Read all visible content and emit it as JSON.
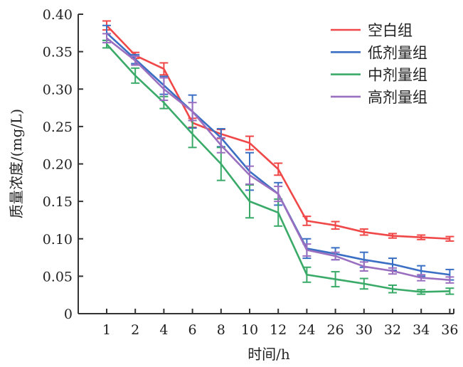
{
  "chart_data": {
    "type": "line",
    "title": "",
    "xlabel": "时间/h",
    "ylabel": "质量浓度/(mg/L)",
    "ylim": [
      0,
      0.4
    ],
    "yticks": [
      "0",
      "0.05",
      "0.10",
      "0.15",
      "0.20",
      "0.25",
      "0.30",
      "0.35",
      "0.40"
    ],
    "categories": [
      "1",
      "2",
      "4",
      "6",
      "8",
      "10",
      "12",
      "24",
      "26",
      "30",
      "32",
      "34",
      "36"
    ],
    "legend_position": "top-right",
    "grid": false,
    "series": [
      {
        "name": "空白组",
        "color": "#f04848",
        "values": [
          0.385,
          0.345,
          0.327,
          0.255,
          0.24,
          0.228,
          0.193,
          0.124,
          0.118,
          0.109,
          0.104,
          0.102,
          0.1
        ],
        "errors": [
          0.006,
          0.004,
          0.008,
          0.006,
          0.006,
          0.009,
          0.008,
          0.006,
          0.005,
          0.004,
          0.003,
          0.003,
          0.003
        ]
      },
      {
        "name": "低剂量组",
        "color": "#3a6fc4",
        "values": [
          0.375,
          0.34,
          0.305,
          0.27,
          0.235,
          0.19,
          0.16,
          0.087,
          0.08,
          0.072,
          0.066,
          0.057,
          0.052
        ],
        "errors": [
          0.01,
          0.006,
          0.012,
          0.022,
          0.012,
          0.025,
          0.015,
          0.013,
          0.008,
          0.01,
          0.008,
          0.007,
          0.007
        ]
      },
      {
        "name": "中剂量组",
        "color": "#3aaa68",
        "values": [
          0.36,
          0.318,
          0.282,
          0.24,
          0.2,
          0.15,
          0.135,
          0.052,
          0.046,
          0.04,
          0.033,
          0.029,
          0.03
        ],
        "errors": [
          0.005,
          0.01,
          0.008,
          0.018,
          0.022,
          0.022,
          0.018,
          0.01,
          0.01,
          0.007,
          0.005,
          0.003,
          0.004
        ]
      },
      {
        "name": "高剂量组",
        "color": "#9a6fc0",
        "values": [
          0.368,
          0.338,
          0.3,
          0.27,
          0.225,
          0.185,
          0.16,
          0.085,
          0.077,
          0.063,
          0.057,
          0.048,
          0.045
        ],
        "errors": [
          0.006,
          0.006,
          0.015,
          0.012,
          0.01,
          0.012,
          0.01,
          0.008,
          0.005,
          0.006,
          0.004,
          0.004,
          0.004
        ]
      }
    ]
  }
}
